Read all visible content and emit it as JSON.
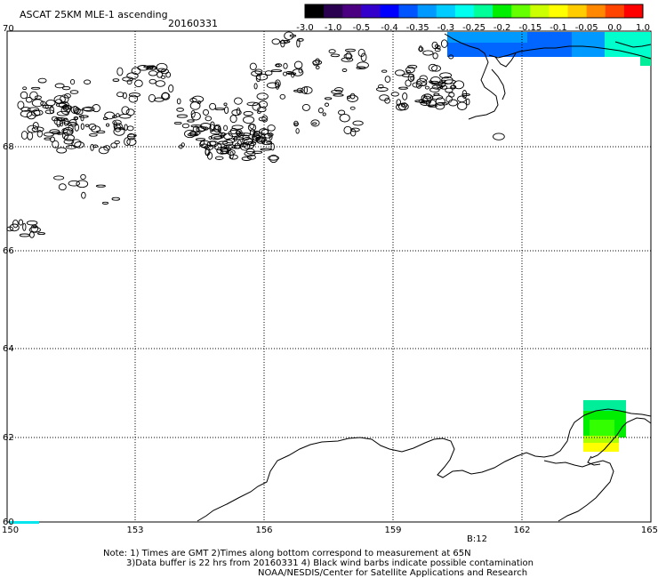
{
  "header": {
    "title": "ASCAT 25KM MLE-1 ascending",
    "date": "20160331"
  },
  "colorbar": {
    "labels": [
      "-3.0",
      "-1.0",
      "-0.5",
      "-0.4",
      "-0.35",
      "-0.3",
      "-0.25",
      "-0.2",
      "-0.15",
      "-0.1",
      "-0.05",
      "0.0",
      "1.0"
    ],
    "colors": [
      "#000000",
      "#2a0050",
      "#4b0082",
      "#3300cc",
      "#0000ff",
      "#0055ff",
      "#0099ff",
      "#00ccff",
      "#00ffee",
      "#00ff99",
      "#00ee00",
      "#66ff00",
      "#ccff00",
      "#ffff00",
      "#ffcc00",
      "#ff8800",
      "#ff4400",
      "#ff0000"
    ]
  },
  "axes": {
    "lat_labels": [
      "70",
      "68",
      "66",
      "64",
      "62",
      "60"
    ],
    "lon_labels": [
      "150",
      "153",
      "156",
      "159",
      "162",
      "165"
    ]
  },
  "marker": {
    "text": "B:12",
    "color": "#cc2200"
  },
  "swath_colors": {
    "blue": "#0066ff",
    "light_blue": "#0099ff",
    "cyan": "#00ffcc",
    "teal": "#00ee99",
    "green": "#00ee00",
    "bright_green": "#33ff00",
    "yellow_green": "#aaff00",
    "yellow": "#ffff00",
    "cyan_bar": "#00e5ee"
  },
  "notes": {
    "line1": "Note: 1) Times are GMT 2)Times along bottom correspond to measurement at 65N",
    "line2": "3)Data buffer is 22 hrs from 20160331 4) Black wind barbs indicate possible contamination",
    "line3": "NOAA/NESDIS/Center for Satellite Applications and Research"
  }
}
